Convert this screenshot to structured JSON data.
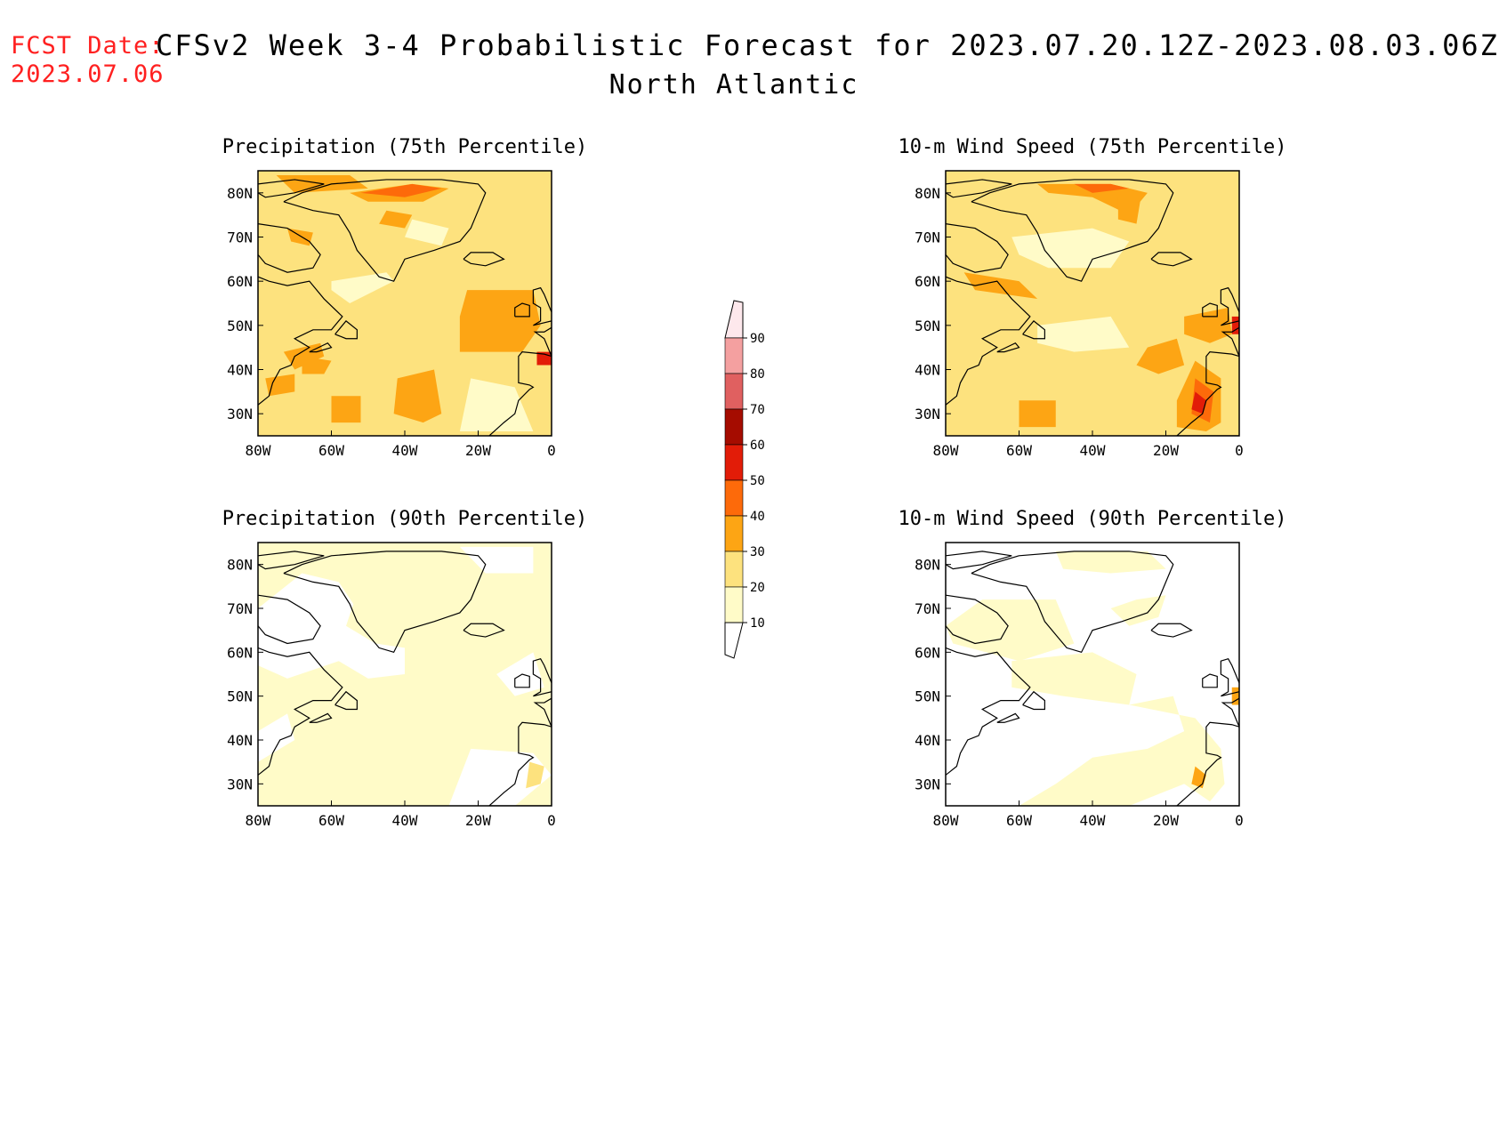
{
  "header": {
    "fcst_label": "FCST Date:",
    "fcst_date": "2023.07.06",
    "title": "CFSv2 Week 3-4 Probabilistic Forecast for 2023.07.20.12Z-2023.08.03.06Z",
    "region": "North Atlantic"
  },
  "panels": [
    {
      "title": "Precipitation (75th Percentile)",
      "level": "high"
    },
    {
      "title": "10-m Wind Speed (75th Percentile)",
      "level": "high"
    },
    {
      "title": "Precipitation (90th Percentile)",
      "level": "low"
    },
    {
      "title": "10-m Wind Speed (90th Percentile)",
      "level": "low"
    }
  ],
  "axes": {
    "lon_labels": [
      "80W",
      "60W",
      "40W",
      "20W",
      "0"
    ],
    "lat_labels": [
      "80N",
      "70N",
      "60N",
      "50N",
      "40N",
      "30N"
    ]
  },
  "colorbar": {
    "labels": [
      "10",
      "20",
      "30",
      "40",
      "50",
      "60",
      "70",
      "80",
      "90"
    ],
    "colors": [
      "#fffbc8",
      "#fde27e",
      "#fda514",
      "#fd6a0a",
      "#e21c08",
      "#a50c00",
      "#e06060",
      "#f4a0a0",
      "#fde8ec"
    ]
  }
}
